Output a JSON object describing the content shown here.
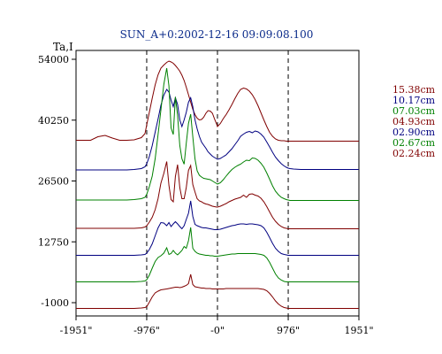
{
  "chart_data": {
    "type": "line",
    "title": "SUN_A+0:2002-12-16 09:09:08.100",
    "ylabel": "Ta,I",
    "xlabel": "",
    "xlim": [
      -1951,
      1951
    ],
    "ylim": [
      -1000,
      54000
    ],
    "x_tick_labels": [
      "-1951\"",
      "-976\"",
      "-0\"",
      "976\"",
      "1951\""
    ],
    "x_tick_values": [
      -1951,
      -976,
      0,
      976,
      1951
    ],
    "y_tick_labels": [
      "54000",
      "40250",
      "26500",
      "12750",
      "-1000"
    ],
    "y_tick_values": [
      54000,
      40250,
      26500,
      12750,
      -1000
    ],
    "vertical_reference_lines": [
      -976,
      0,
      976
    ],
    "grid": false,
    "legend_position": "right",
    "x": [
      -1951,
      -1850,
      -1750,
      -1650,
      -1550,
      -1450,
      -1350,
      -1250,
      -1150,
      -1050,
      -1000,
      -976,
      -940,
      -900,
      -860,
      -820,
      -780,
      -740,
      -700,
      -670,
      -640,
      -610,
      -580,
      -550,
      -520,
      -490,
      -460,
      -430,
      -400,
      -370,
      -340,
      -310,
      -280,
      -250,
      -220,
      -190,
      -160,
      -130,
      -100,
      -70,
      -40,
      -10,
      0,
      40,
      80,
      120,
      160,
      200,
      240,
      280,
      320,
      360,
      400,
      440,
      480,
      520,
      560,
      600,
      640,
      680,
      720,
      760,
      800,
      840,
      880,
      920,
      950,
      976,
      1000,
      1050,
      1150,
      1250,
      1350,
      1450,
      1550,
      1650,
      1750,
      1850,
      1951
    ],
    "series": [
      {
        "name": "15.38cm",
        "color": "#800000",
        "values": [
          35700,
          35700,
          35700,
          36500,
          36800,
          36200,
          35700,
          35700,
          35800,
          36300,
          37200,
          39200,
          42000,
          45200,
          48200,
          50500,
          52000,
          52700,
          53300,
          53600,
          53400,
          53100,
          52600,
          52000,
          51300,
          50400,
          49200,
          47700,
          46000,
          44300,
          42700,
          41500,
          40700,
          40300,
          40400,
          40900,
          41800,
          42400,
          42300,
          41800,
          40500,
          39300,
          38800,
          39500,
          40600,
          41500,
          42600,
          43800,
          45100,
          46300,
          47200,
          47500,
          47300,
          46800,
          46000,
          44900,
          43500,
          41900,
          40300,
          38800,
          37500,
          36600,
          36000,
          35700,
          35600,
          35600,
          35500,
          35500,
          35500,
          35500,
          35500,
          35500,
          35500,
          35500,
          35500,
          35500,
          35500,
          35500,
          35500
        ]
      },
      {
        "name": "10.17cm",
        "color": "#000080",
        "values": [
          29000,
          29000,
          29000,
          29000,
          29000,
          29000,
          29000,
          29000,
          29100,
          29300,
          29700,
          30400,
          32000,
          34500,
          37500,
          40500,
          43600,
          45900,
          47200,
          46600,
          44800,
          43300,
          45300,
          43800,
          40300,
          38800,
          40300,
          42000,
          44300,
          45300,
          43300,
          40300,
          38300,
          36600,
          35300,
          34600,
          33900,
          33100,
          32600,
          32100,
          31800,
          31500,
          31400,
          31600,
          32000,
          32400,
          33100,
          33800,
          34700,
          35600,
          36600,
          37100,
          37500,
          37700,
          37400,
          37800,
          37600,
          37100,
          36400,
          35300,
          34200,
          33000,
          31900,
          31100,
          30400,
          29900,
          29600,
          29400,
          29300,
          29200,
          29100,
          29100,
          29100,
          29100,
          29100,
          29100,
          29100,
          29100,
          29100
        ]
      },
      {
        "name": "07.03cm",
        "color": "#008000",
        "values": [
          22200,
          22200,
          22200,
          22200,
          22200,
          22200,
          22200,
          22200,
          22300,
          22500,
          22800,
          23500,
          25200,
          27600,
          31500,
          37000,
          42500,
          48300,
          52000,
          48000,
          38500,
          37000,
          45500,
          41300,
          34500,
          31500,
          30300,
          35000,
          39500,
          41600,
          36500,
          31500,
          28800,
          27800,
          27400,
          27100,
          27000,
          26900,
          26800,
          26500,
          26200,
          25900,
          25800,
          26100,
          26800,
          27600,
          28400,
          29100,
          29600,
          30000,
          30300,
          30800,
          31200,
          31100,
          31700,
          31600,
          31200,
          30500,
          29600,
          28300,
          26900,
          25400,
          24200,
          23400,
          22800,
          22500,
          22300,
          22200,
          22100,
          22100,
          22100,
          22100,
          22100,
          22100,
          22100,
          22100,
          22100,
          22100,
          22100
        ]
      },
      {
        "name": "04.93cm",
        "color": "#800000",
        "values": [
          15800,
          15800,
          15800,
          15800,
          15800,
          15800,
          15800,
          15800,
          15800,
          15900,
          16100,
          16400,
          17200,
          18300,
          20000,
          22500,
          26000,
          28200,
          30900,
          25500,
          22300,
          21800,
          27500,
          30200,
          25000,
          22500,
          22500,
          25000,
          28900,
          30000,
          25700,
          24000,
          22500,
          22000,
          21800,
          21500,
          21300,
          21200,
          21000,
          20800,
          20700,
          20600,
          20600,
          20800,
          21100,
          21400,
          21800,
          22100,
          22400,
          22600,
          22800,
          23300,
          22800,
          23500,
          23600,
          23300,
          23100,
          22600,
          21800,
          20700,
          19500,
          18300,
          17400,
          16700,
          16200,
          15900,
          15800,
          15700,
          15700,
          15700,
          15700,
          15700,
          15700,
          15700,
          15700,
          15700,
          15700,
          15700,
          15700
        ]
      },
      {
        "name": "02.90cm",
        "color": "#000080",
        "values": [
          9700,
          9700,
          9700,
          9700,
          9700,
          9700,
          9700,
          9700,
          9700,
          9800,
          9900,
          10200,
          11000,
          12300,
          14100,
          15900,
          17100,
          17000,
          16400,
          17100,
          16200,
          16800,
          17300,
          16800,
          16200,
          15700,
          16400,
          17800,
          19200,
          22000,
          18500,
          16700,
          16400,
          16200,
          16000,
          15900,
          15900,
          15800,
          15700,
          15600,
          15500,
          15500,
          15500,
          15600,
          15800,
          16000,
          16200,
          16400,
          16500,
          16700,
          16800,
          16800,
          16700,
          16800,
          16800,
          16700,
          16600,
          16400,
          15900,
          14900,
          13700,
          12400,
          11300,
          10600,
          10100,
          9900,
          9800,
          9700,
          9700,
          9700,
          9700,
          9700,
          9700,
          9700,
          9700,
          9700,
          9700,
          9700,
          9700
        ]
      },
      {
        "name": "02.67cm",
        "color": "#008000",
        "values": [
          3700,
          3700,
          3700,
          3700,
          3700,
          3700,
          3700,
          3700,
          3700,
          3800,
          3900,
          4200,
          5200,
          6800,
          8300,
          9200,
          9600,
          10200,
          11400,
          9900,
          10100,
          10800,
          10200,
          9800,
          10300,
          10800,
          11700,
          11300,
          13000,
          16000,
          11300,
          10600,
          10200,
          10000,
          9900,
          9800,
          9700,
          9700,
          9600,
          9600,
          9500,
          9500,
          9500,
          9600,
          9700,
          9800,
          9900,
          10000,
          10000,
          10100,
          10100,
          10100,
          10100,
          10100,
          10100,
          10100,
          10000,
          9900,
          9700,
          9100,
          8100,
          6800,
          5500,
          4600,
          4100,
          3800,
          3700,
          3700,
          3700,
          3700,
          3700,
          3700,
          3700,
          3700,
          3700,
          3700,
          3700,
          3700,
          3700
        ]
      },
      {
        "name": "02.24cm",
        "color": "#800000",
        "values": [
          -2300,
          -2300,
          -2300,
          -2300,
          -2300,
          -2300,
          -2300,
          -2300,
          -2300,
          -2200,
          -2100,
          -1900,
          -900,
          300,
          1200,
          1600,
          1900,
          2000,
          2100,
          2200,
          2300,
          2400,
          2500,
          2500,
          2400,
          2500,
          2700,
          2900,
          3300,
          5400,
          3100,
          2600,
          2500,
          2400,
          2300,
          2300,
          2200,
          2200,
          2200,
          2100,
          2100,
          2100,
          2100,
          2100,
          2100,
          2200,
          2200,
          2200,
          2200,
          2200,
          2200,
          2200,
          2200,
          2200,
          2200,
          2200,
          2200,
          2100,
          2000,
          1700,
          1100,
          300,
          -600,
          -1300,
          -1800,
          -2100,
          -2200,
          -2300,
          -2300,
          -2300,
          -2300,
          -2300,
          -2300,
          -2300,
          -2300,
          -2300,
          -2300,
          -2300,
          -2300
        ]
      }
    ]
  }
}
